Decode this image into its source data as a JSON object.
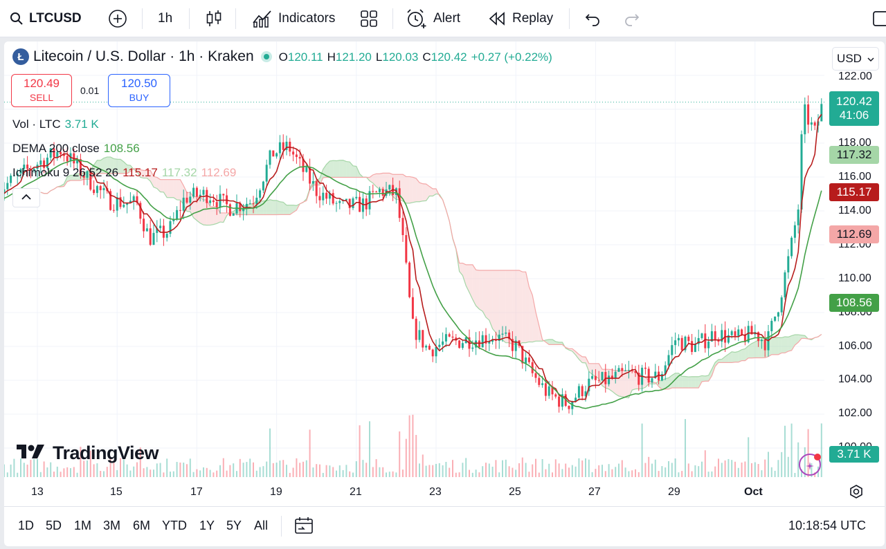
{
  "topbar": {
    "symbol": "LTCUSD",
    "interval": "1h",
    "indicators_label": "Indicators",
    "alert_label": "Alert",
    "replay_label": "Replay"
  },
  "legend": {
    "title": "Litecoin / U.S. Dollar · 1h · Kraken",
    "coin_glyph": "Ł",
    "o_label": "O",
    "o_value": "120.11",
    "h_label": "H",
    "h_value": "121.20",
    "l_label": "L",
    "l_value": "120.03",
    "c_label": "C",
    "c_value": "120.42",
    "change": "+0.27 (+0.22%)"
  },
  "trade": {
    "sell_price": "120.49",
    "sell_label": "SELL",
    "spread": "0.01",
    "buy_price": "120.50",
    "buy_label": "BUY"
  },
  "indicators": {
    "vol_label": "Vol · LTC",
    "vol_value": "3.71 K",
    "dema_label": "DEMA 200 close",
    "dema_value": "108.56",
    "ichimoku_label": "Ichimoku 9 26 52 26",
    "ichi_v1": "115.17",
    "ichi_v2": "117.32",
    "ichi_v3": "112.69"
  },
  "currency": "USD",
  "watermark": "TradingView",
  "price_tags": {
    "last": "120.42",
    "countdown": "41:06",
    "ichi_span_a": "117.32",
    "ichi_conv": "115.17",
    "ichi_span_b": "112.69",
    "dema": "108.56",
    "volume": "3.71 K"
  },
  "colors": {
    "up": "#22ab94",
    "down": "#f23645",
    "conversion": "#b71c1c",
    "dema": "#43a047",
    "cloud_up": "#a5d6a7",
    "cloud_down": "#f7c6c6",
    "link": "#2962ff"
  },
  "ranges": [
    "1D",
    "5D",
    "1M",
    "3M",
    "6M",
    "YTD",
    "1Y",
    "5Y",
    "All"
  ],
  "clock": "10:18:54 UTC",
  "chart_data": {
    "type": "candlestick",
    "y_ticks": [
      "122.00",
      "118.00",
      "116.00",
      "114.00",
      "112.00",
      "110.00",
      "108.00",
      "106.00",
      "104.00",
      "102.00",
      "100.00"
    ],
    "x_ticks": [
      "13",
      "15",
      "17",
      "19",
      "21",
      "23",
      "25",
      "27",
      "29",
      "Oct"
    ],
    "ylim": [
      99.6,
      122.5
    ],
    "series_close": [
      {
        "day": 12.0,
        "close": 115.2
      },
      {
        "day": 13.0,
        "close": 116.8
      },
      {
        "day": 13.6,
        "close": 117.6
      },
      {
        "day": 14.3,
        "close": 115.8
      },
      {
        "day": 14.8,
        "close": 114.6
      },
      {
        "day": 15.5,
        "close": 114.4
      },
      {
        "day": 15.8,
        "close": 112.4
      },
      {
        "day": 16.3,
        "close": 112.8
      },
      {
        "day": 16.7,
        "close": 114.8
      },
      {
        "day": 17.3,
        "close": 115.0
      },
      {
        "day": 17.8,
        "close": 114.2
      },
      {
        "day": 18.4,
        "close": 114.6
      },
      {
        "day": 18.9,
        "close": 117.4
      },
      {
        "day": 19.3,
        "close": 117.8
      },
      {
        "day": 19.6,
        "close": 116.6
      },
      {
        "day": 20.0,
        "close": 115.2
      },
      {
        "day": 20.6,
        "close": 114.2
      },
      {
        "day": 21.2,
        "close": 114.4
      },
      {
        "day": 21.6,
        "close": 115.2
      },
      {
        "day": 22.0,
        "close": 115.0
      },
      {
        "day": 22.2,
        "close": 111.6
      },
      {
        "day": 22.4,
        "close": 107.2
      },
      {
        "day": 22.8,
        "close": 105.8
      },
      {
        "day": 23.2,
        "close": 106.2
      },
      {
        "day": 23.8,
        "close": 106.4
      },
      {
        "day": 24.5,
        "close": 106.6
      },
      {
        "day": 25.0,
        "close": 106.0
      },
      {
        "day": 25.4,
        "close": 104.4
      },
      {
        "day": 25.8,
        "close": 103.2
      },
      {
        "day": 26.3,
        "close": 102.6
      },
      {
        "day": 26.8,
        "close": 103.8
      },
      {
        "day": 27.3,
        "close": 104.0
      },
      {
        "day": 27.8,
        "close": 104.4
      },
      {
        "day": 28.2,
        "close": 104.2
      },
      {
        "day": 28.6,
        "close": 104.2
      },
      {
        "day": 29.0,
        "close": 106.4
      },
      {
        "day": 29.5,
        "close": 106.0
      },
      {
        "day": 30.0,
        "close": 106.8
      },
      {
        "day": 30.5,
        "close": 106.4
      },
      {
        "day": 31.0,
        "close": 106.8
      },
      {
        "day": 31.3,
        "close": 106.2
      },
      {
        "day": 31.6,
        "close": 108.6
      },
      {
        "day": 31.9,
        "close": 111.8
      },
      {
        "day": 32.1,
        "close": 114.4
      },
      {
        "day": 32.2,
        "close": 120.0
      },
      {
        "day": 32.5,
        "close": 118.6
      },
      {
        "day": 32.7,
        "close": 120.4
      }
    ]
  }
}
